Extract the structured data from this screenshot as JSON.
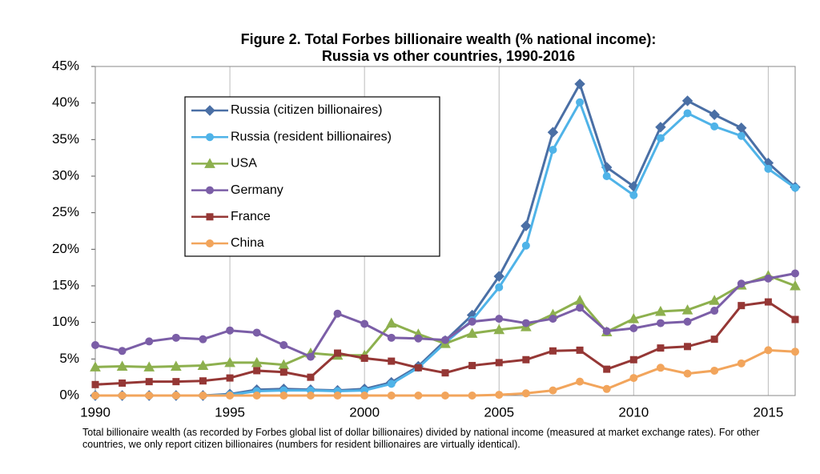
{
  "chart_data": {
    "type": "line",
    "title": "Figure 2. Total Forbes billionaire wealth  (% national income):",
    "subtitle": "Russia vs other countries, 1990-2016",
    "note": "Total billionaire wealth (as recorded by Forbes global list of dollar billionaires) divided by national income (measured at market exchange rates). For other countries, we only report citizen billionaires (numbers for resident billionaires are virtually identical).",
    "x": [
      1990,
      1991,
      1992,
      1993,
      1994,
      1995,
      1996,
      1997,
      1998,
      1999,
      2000,
      2001,
      2002,
      2003,
      2004,
      2005,
      2006,
      2007,
      2008,
      2009,
      2010,
      2011,
      2012,
      2013,
      2014,
      2015,
      2016
    ],
    "xlim": [
      1990,
      2016
    ],
    "xticks": [
      1990,
      1995,
      2000,
      2005,
      2010,
      2015
    ],
    "ylim": [
      0,
      45
    ],
    "yticks": [
      {
        "value": 0,
        "label": "0%"
      },
      {
        "value": 5,
        "label": "5%"
      },
      {
        "value": 10,
        "label": "10%"
      },
      {
        "value": 15,
        "label": "15%"
      },
      {
        "value": 20,
        "label": "20%"
      },
      {
        "value": 25,
        "label": "25%"
      },
      {
        "value": 30,
        "label": "30%"
      },
      {
        "value": 35,
        "label": "35%"
      },
      {
        "value": 40,
        "label": "40%"
      },
      {
        "value": 45,
        "label": "45%"
      }
    ],
    "grid": true,
    "legend": "upper-left",
    "series": [
      {
        "name": "Russia (citizen billionaires)",
        "color": "#4a6fa5",
        "marker": "diamond",
        "values": [
          0,
          0,
          0,
          0,
          0,
          0.2,
          0.8,
          0.9,
          0.8,
          0.7,
          0.9,
          1.8,
          4.0,
          7.5,
          11,
          16.3,
          23.2,
          36,
          42.6,
          31.2,
          28.6,
          36.7,
          40.3,
          38.4,
          36.6,
          31.8,
          28.5
        ]
      },
      {
        "name": "Russia (resident billionaires)",
        "color": "#4fb3e8",
        "marker": "circle",
        "values": [
          0,
          0,
          0,
          0,
          0,
          0.1,
          0.6,
          0.7,
          0.7,
          0.6,
          0.7,
          1.6,
          3.8,
          7.2,
          10.3,
          14.8,
          20.5,
          33.6,
          40.1,
          30,
          27.4,
          35.2,
          38.6,
          36.8,
          35.5,
          31.0,
          28.4
        ]
      },
      {
        "name": "USA",
        "color": "#8db04e",
        "marker": "triangle",
        "values": [
          3.9,
          4.0,
          3.9,
          4.0,
          4.1,
          4.5,
          4.5,
          4.2,
          5.8,
          5.5,
          5.5,
          9.9,
          8.4,
          7.1,
          8.5,
          9.0,
          9.4,
          11.1,
          13.0,
          8.7,
          10.5,
          11.5,
          11.7,
          13.0,
          15.1,
          16.4,
          15.0
        ]
      },
      {
        "name": "Germany",
        "color": "#7b5ea7",
        "marker": "circle",
        "values": [
          6.9,
          6.1,
          7.4,
          7.9,
          7.7,
          8.9,
          8.6,
          6.9,
          5.3,
          11.2,
          9.8,
          7.9,
          7.8,
          7.6,
          10.1,
          10.5,
          9.9,
          10.5,
          12.0,
          8.8,
          9.2,
          9.9,
          10.1,
          11.6,
          15.3,
          16.0,
          16.7
        ]
      },
      {
        "name": "France",
        "color": "#953735",
        "marker": "square",
        "values": [
          1.5,
          1.7,
          1.9,
          1.9,
          2.0,
          2.4,
          3.4,
          3.2,
          2.5,
          5.8,
          5.1,
          4.7,
          3.8,
          3.1,
          4.1,
          4.5,
          4.9,
          6.1,
          6.2,
          3.6,
          4.9,
          6.5,
          6.7,
          7.7,
          12.3,
          12.8,
          10.4
        ]
      },
      {
        "name": "China",
        "color": "#f2a55c",
        "marker": "circle",
        "values": [
          0,
          0,
          0,
          0,
          0,
          0,
          0,
          0,
          0,
          0,
          0,
          0,
          0,
          0,
          0,
          0.1,
          0.3,
          0.7,
          1.9,
          0.9,
          2.4,
          3.8,
          3.0,
          3.4,
          4.4,
          6.2,
          6.0
        ]
      }
    ]
  }
}
